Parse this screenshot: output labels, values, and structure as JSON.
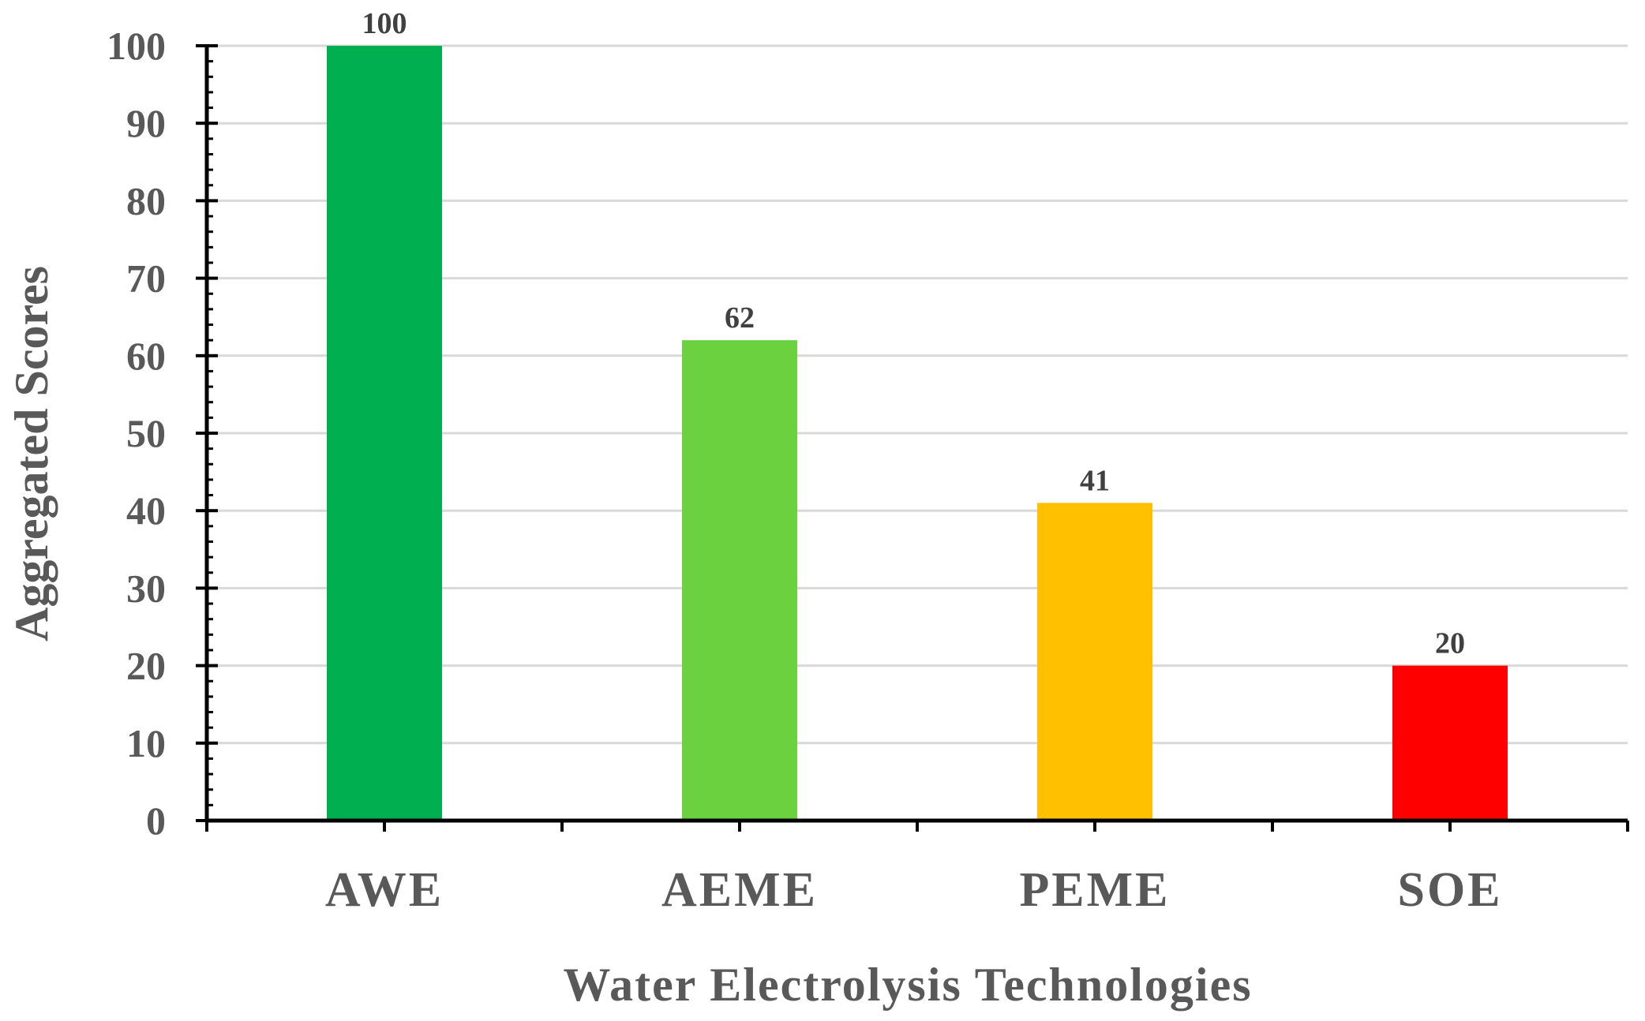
{
  "chart_data": {
    "type": "bar",
    "categories": [
      "AWE",
      "AEME",
      "PEME",
      "SOE"
    ],
    "values": [
      100,
      62,
      41,
      20
    ],
    "colors": [
      "#00B050",
      "#6CD13F",
      "#FFC000",
      "#FF0000"
    ],
    "xlabel": "Water Electrolysis Technologies",
    "ylabel": "Aggregated Scores",
    "ylim": [
      0,
      100
    ],
    "yticks": [
      0,
      10,
      20,
      30,
      40,
      50,
      60,
      70,
      80,
      90,
      100
    ],
    "grid": true,
    "data_labels": true
  }
}
